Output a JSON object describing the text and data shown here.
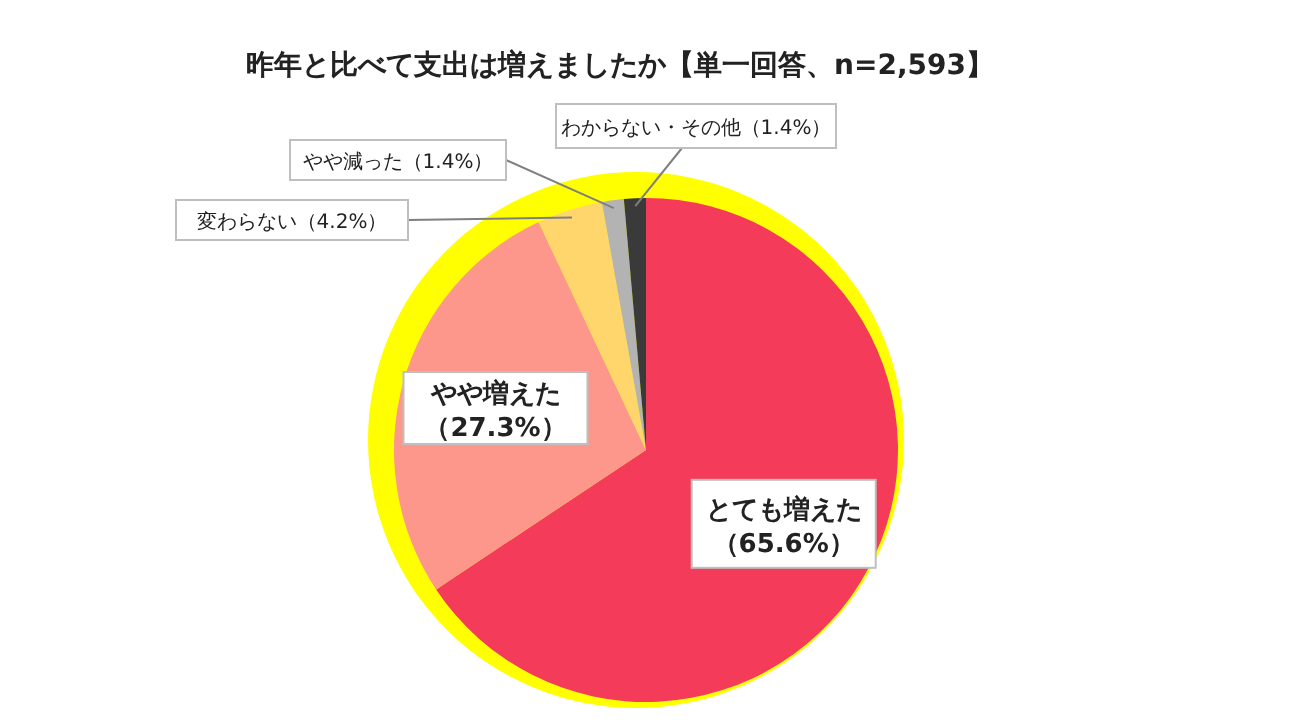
{
  "chart_data": {
    "type": "pie",
    "title": "昨年と比べて支出は増えましたか【単一回答、n=2,593】",
    "categories": [
      "とても増えた",
      "やや増えた",
      "変わらない",
      "やや減った",
      "わからない・その他"
    ],
    "values": [
      65.6,
      27.3,
      4.2,
      1.4,
      1.4
    ],
    "value_labels": [
      "（65.6%）",
      "（27.3%）",
      "（4.2%）",
      "（1.4%）",
      "（1.4%）"
    ],
    "colors": [
      "#f43b5a",
      "#fd978c",
      "#fed66c",
      "#b3b3b3",
      "#3a3a3a"
    ],
    "legend": false
  }
}
